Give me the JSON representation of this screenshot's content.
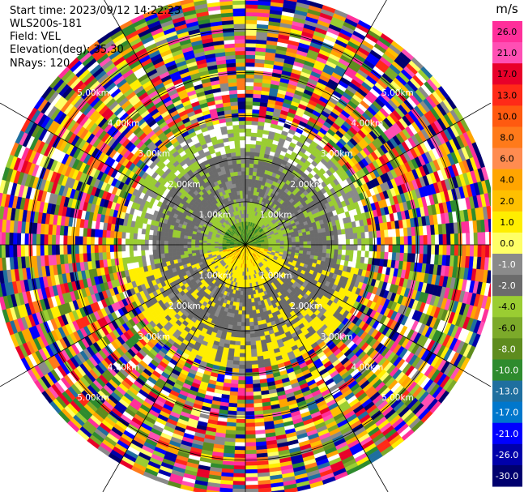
{
  "info": {
    "start_time": "Start time: 2023/09/12 14:22:23",
    "instrument": "WLS200s-181",
    "field": "Field: VEL",
    "elevation": "Elevation(deg): 35.30",
    "nrays": "NRays: 120"
  },
  "colorbar": {
    "unit": "m/s",
    "ticks": [
      "26.0",
      "21.0",
      "17.0",
      "13.0",
      "10.0",
      "8.0",
      "6.0",
      "4.0",
      "2.0",
      "1.0",
      "0.0",
      "-1.0",
      "-2.0",
      "-4.0",
      "-6.0",
      "-8.0",
      "-10.0",
      "-13.0",
      "-17.0",
      "-21.0",
      "-26.0",
      "-30.0"
    ],
    "colors": [
      "#ff2f9a",
      "#ff4fb4",
      "#e8002a",
      "#ff2a18",
      "#ff5a10",
      "#ff7a1a",
      "#ff8c50",
      "#ffa500",
      "#ffc000",
      "#ffee00",
      "#ffff66",
      "#8a8a8a",
      "#6b6b6b",
      "#9acd32",
      "#7caa2a",
      "#5e8c1e",
      "#2e8b2e",
      "#1f6f9f",
      "#0077cc",
      "#0000ff",
      "#0000aa",
      "#00006e"
    ]
  },
  "chart_data": {
    "type": "ppi",
    "field": "VEL",
    "units": "m/s",
    "nrays": 120,
    "range_rings_km": [
      1.0,
      2.0,
      3.0,
      4.0,
      5.0
    ],
    "ring_labels": [
      "1.00km",
      "2.00km",
      "3.00km",
      "4.00km",
      "5.00km"
    ],
    "colorbar_levels": [
      26.0,
      21.0,
      17.0,
      13.0,
      10.0,
      8.0,
      6.0,
      4.0,
      2.0,
      1.0,
      0.0,
      -1.0,
      -2.0,
      -4.0,
      -6.0,
      -8.0,
      -10.0,
      -13.0,
      -17.0,
      -21.0,
      -26.0,
      -30.0
    ]
  }
}
